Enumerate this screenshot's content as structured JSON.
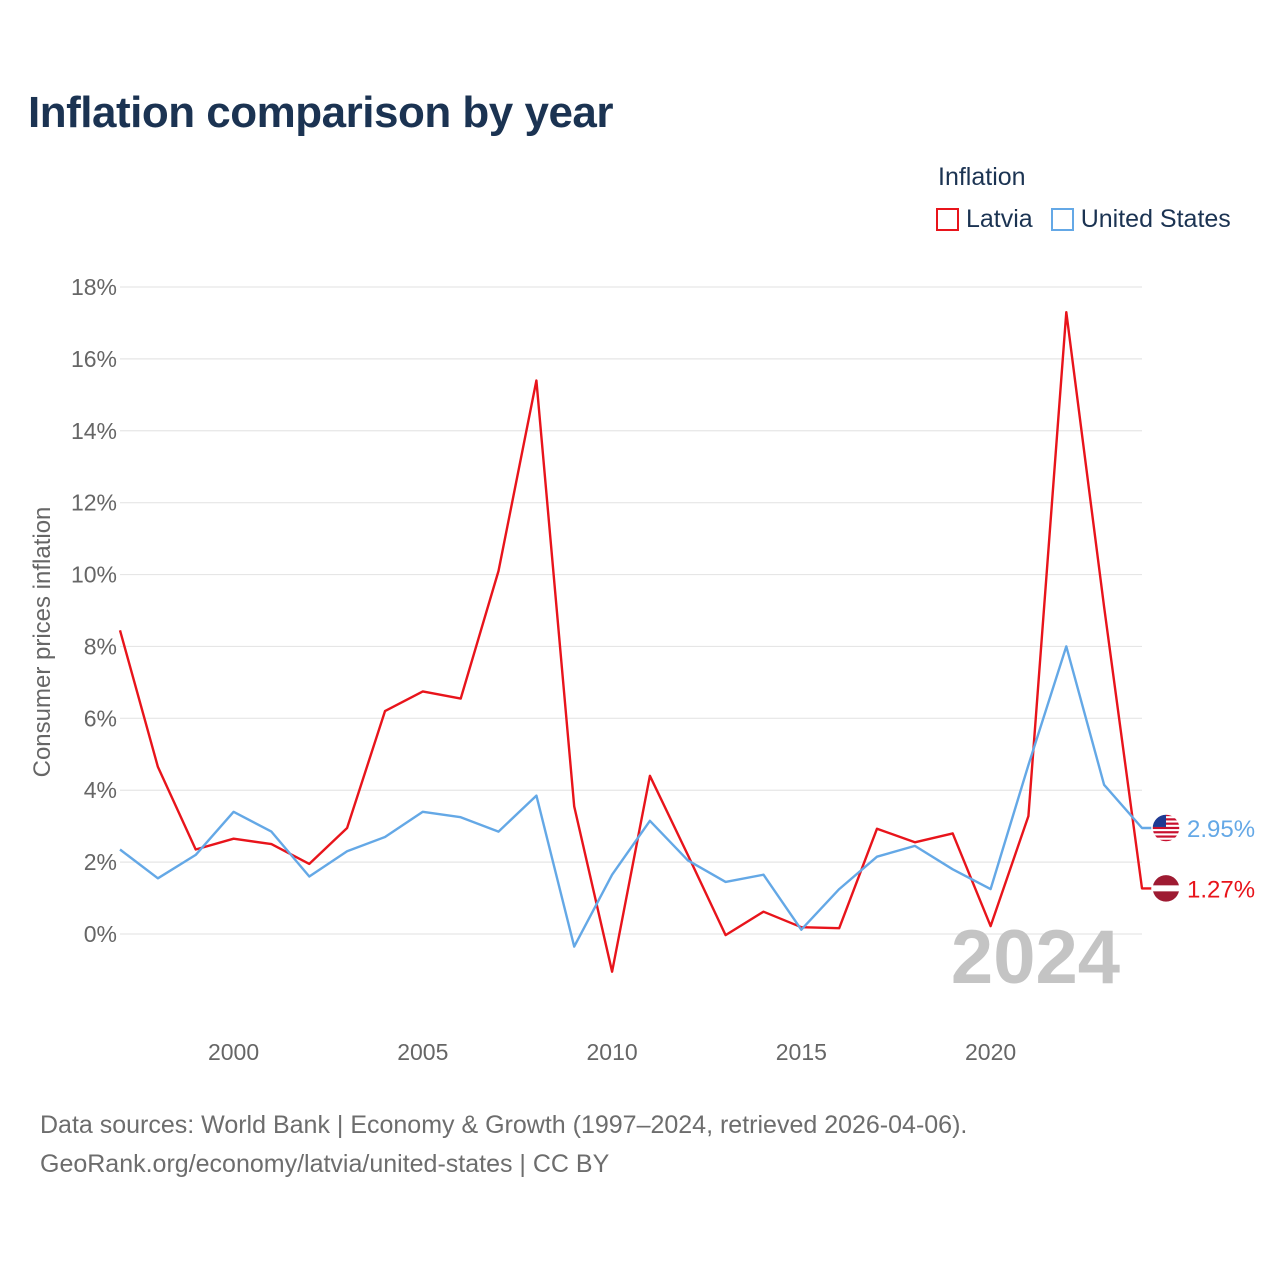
{
  "title": "Inflation comparison by year",
  "legend": {
    "title": "Inflation",
    "items": [
      {
        "label": "Latvia",
        "color": "#e8141b"
      },
      {
        "label": "United States",
        "color": "#64a8e6"
      }
    ]
  },
  "chart_data": {
    "type": "line",
    "ylabel": "Consumer prices inflation",
    "xlabel": "",
    "xlim": [
      1997,
      2024
    ],
    "ylim": [
      -2,
      18
    ],
    "yticks": [
      0,
      2,
      4,
      6,
      8,
      10,
      12,
      14,
      16,
      18
    ],
    "ytick_labels": [
      "0%",
      "2%",
      "4%",
      "6%",
      "8%",
      "10%",
      "12%",
      "14%",
      "16%",
      "18%"
    ],
    "xticks": [
      2000,
      2005,
      2010,
      2015,
      2020
    ],
    "xtick_labels": [
      "2000",
      "2005",
      "2010",
      "2015",
      "2020"
    ],
    "x": [
      1997,
      1998,
      1999,
      2000,
      2001,
      2002,
      2003,
      2004,
      2005,
      2006,
      2007,
      2008,
      2009,
      2010,
      2011,
      2012,
      2013,
      2014,
      2015,
      2016,
      2017,
      2018,
      2019,
      2020,
      2021,
      2022,
      2023,
      2024
    ],
    "series": [
      {
        "name": "Latvia",
        "color": "#e8141b",
        "end_label": "1.27%",
        "values": [
          8.45,
          4.65,
          2.35,
          2.65,
          2.5,
          1.95,
          2.95,
          6.2,
          6.75,
          6.55,
          10.1,
          15.4,
          3.55,
          -1.05,
          4.4,
          2.2,
          -0.03,
          0.62,
          0.19,
          0.16,
          2.93,
          2.55,
          2.8,
          0.22,
          3.28,
          17.3,
          9.1,
          1.27
        ]
      },
      {
        "name": "United States",
        "color": "#64a8e6",
        "end_label": "2.95%",
        "values": [
          2.35,
          1.55,
          2.2,
          3.4,
          2.85,
          1.6,
          2.3,
          2.7,
          3.4,
          3.25,
          2.85,
          3.85,
          -0.35,
          1.65,
          3.15,
          2.05,
          1.45,
          1.65,
          0.12,
          1.25,
          2.15,
          2.45,
          1.8,
          1.25,
          4.7,
          8.0,
          4.15,
          2.95
        ]
      }
    ],
    "year_label": "2024"
  },
  "footer": {
    "line1": "Data sources: World Bank | Economy & Growth (1997–2024, retrieved 2026-04-06).",
    "line2": "GeoRank.org/economy/latvia/united-states | CC BY"
  }
}
